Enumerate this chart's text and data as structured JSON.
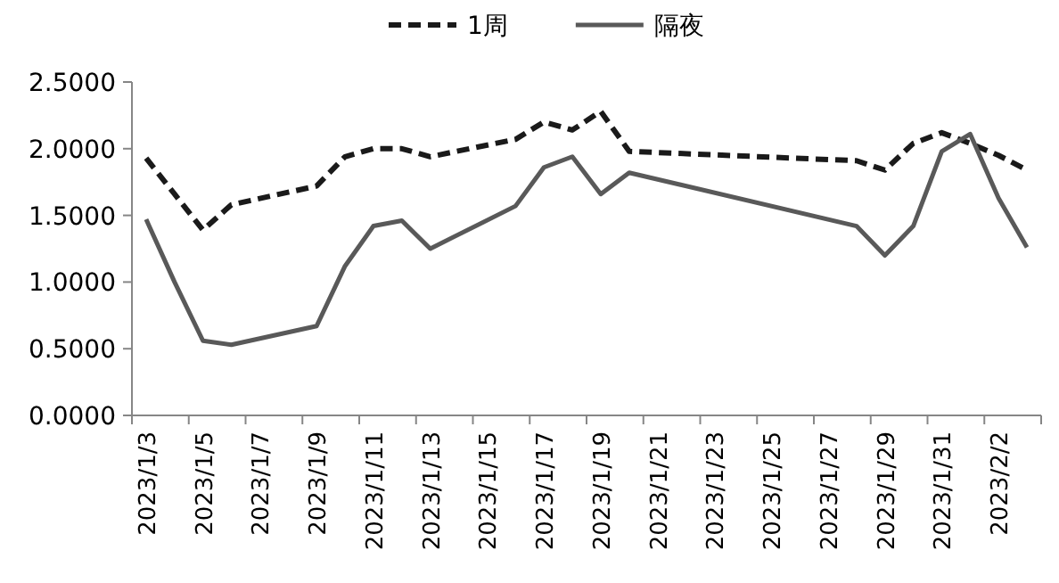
{
  "chart_data": {
    "type": "line",
    "x": [
      "2023-01-03",
      "2023-01-04",
      "2023-01-05",
      "2023-01-06",
      "2023-01-09",
      "2023-01-10",
      "2023-01-11",
      "2023-01-12",
      "2023-01-13",
      "2023-01-16",
      "2023-01-17",
      "2023-01-18",
      "2023-01-19",
      "2023-01-20",
      "2023-01-28",
      "2023-01-29",
      "2023-01-30",
      "2023-01-31",
      "2023-02-01",
      "2023-02-02",
      "2023-02-03"
    ],
    "series": [
      {
        "name": "1周",
        "color": "#1a1a1a",
        "line_style": "dashed",
        "values": [
          1.93,
          1.66,
          1.39,
          1.58,
          1.72,
          1.94,
          2.0,
          2.0,
          1.94,
          2.07,
          2.2,
          2.14,
          2.28,
          1.98,
          1.91,
          1.84,
          2.04,
          2.12,
          2.04,
          1.95,
          1.84
        ]
      },
      {
        "name": "隔夜",
        "color": "#595959",
        "line_style": "solid",
        "values": [
          1.47,
          1.0,
          0.56,
          0.53,
          0.67,
          1.12,
          1.42,
          1.46,
          1.25,
          1.57,
          1.86,
          1.94,
          1.66,
          1.82,
          1.42,
          1.2,
          1.42,
          1.98,
          2.11,
          1.63,
          1.26
        ]
      }
    ],
    "xlim": [
      "2023-01-02T12:00",
      "2023-02-03T12:00"
    ],
    "xticks": [
      {
        "value": "2023-01-03",
        "label": "2023/1/3"
      },
      {
        "value": "2023-01-05",
        "label": "2023/1/5"
      },
      {
        "value": "2023-01-07",
        "label": "2023/1/7"
      },
      {
        "value": "2023-01-09",
        "label": "2023/1/9"
      },
      {
        "value": "2023-01-11",
        "label": "2023/1/11"
      },
      {
        "value": "2023-01-13",
        "label": "2023/1/13"
      },
      {
        "value": "2023-01-15",
        "label": "2023/1/15"
      },
      {
        "value": "2023-01-17",
        "label": "2023/1/17"
      },
      {
        "value": "2023-01-19",
        "label": "2023/1/19"
      },
      {
        "value": "2023-01-21",
        "label": "2023/1/21"
      },
      {
        "value": "2023-01-23",
        "label": "2023/1/23"
      },
      {
        "value": "2023-01-25",
        "label": "2023/1/25"
      },
      {
        "value": "2023-01-27",
        "label": "2023/1/27"
      },
      {
        "value": "2023-01-29",
        "label": "2023/1/29"
      },
      {
        "value": "2023-01-31",
        "label": "2023/1/31"
      },
      {
        "value": "2023-02-02",
        "label": "2023/2/2"
      }
    ],
    "ylim": [
      0,
      2.5
    ],
    "yticks": [
      {
        "value": 0,
        "label": "0.0000"
      },
      {
        "value": 0.5,
        "label": "0.5000"
      },
      {
        "value": 1,
        "label": "1.0000"
      },
      {
        "value": 1.5,
        "label": "1.5000"
      },
      {
        "value": 2,
        "label": "2.0000"
      },
      {
        "value": 2.5,
        "label": "2.5000"
      }
    ],
    "grid": false,
    "legend": "top"
  }
}
